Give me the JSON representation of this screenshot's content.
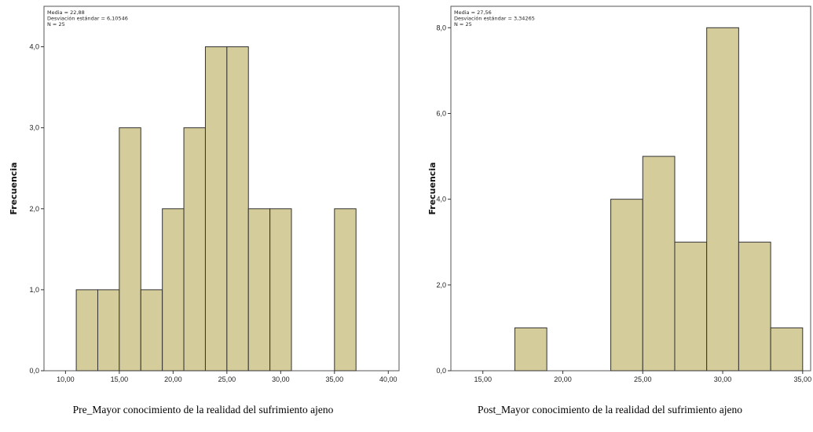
{
  "chart_data": [
    {
      "type": "bar",
      "id": "pre",
      "title": "",
      "xlabel": "Pre_Mayor conocimiento de la realidad del sufrimiento ajeno",
      "ylabel": "Frecuencia",
      "stats": [
        "Media = 22,88",
        "Desviación estándar = 6,10546",
        "N = 25"
      ],
      "xlim": [
        8,
        41
      ],
      "ylim": [
        0,
        4.5
      ],
      "x_ticks": [
        10,
        15,
        20,
        25,
        30,
        35,
        40
      ],
      "x_tick_labels": [
        "10,00",
        "15,00",
        "20,00",
        "25,00",
        "30,00",
        "35,00",
        "40,00"
      ],
      "y_ticks": [
        0,
        1,
        2,
        3,
        4
      ],
      "y_tick_labels": [
        "0,0",
        "1,0",
        "2,0",
        "3,0",
        "4,0"
      ],
      "bin_width": 2,
      "bins": [
        {
          "start": 11,
          "end": 13,
          "value": 1
        },
        {
          "start": 13,
          "end": 15,
          "value": 1
        },
        {
          "start": 15,
          "end": 17,
          "value": 3
        },
        {
          "start": 17,
          "end": 19,
          "value": 1
        },
        {
          "start": 19,
          "end": 21,
          "value": 2
        },
        {
          "start": 21,
          "end": 23,
          "value": 3
        },
        {
          "start": 23,
          "end": 25,
          "value": 4
        },
        {
          "start": 25,
          "end": 27,
          "value": 4
        },
        {
          "start": 27,
          "end": 29,
          "value": 2
        },
        {
          "start": 29,
          "end": 31,
          "value": 2
        },
        {
          "start": 35,
          "end": 37,
          "value": 2
        }
      ],
      "grid": false,
      "bar_color": "#d4cc9a",
      "bar_edge": "#333333"
    },
    {
      "type": "bar",
      "id": "post",
      "title": "",
      "xlabel": "Post_Mayor conocimiento de la realidad del sufrimiento ajeno",
      "ylabel": "Frecuencia",
      "stats": [
        "Media = 27,56",
        "Desviación estándar = 3,34265",
        "N = 25"
      ],
      "xlim": [
        13,
        35.5
      ],
      "ylim": [
        0,
        8.5
      ],
      "x_ticks": [
        15,
        20,
        25,
        30,
        35
      ],
      "x_tick_labels": [
        "15,00",
        "20,00",
        "25,00",
        "30,00",
        "35,00"
      ],
      "y_ticks": [
        0,
        2,
        4,
        6,
        8
      ],
      "y_tick_labels": [
        "0,0",
        "2,0",
        "4,0",
        "6,0",
        "8,0"
      ],
      "bin_width": 2,
      "bins": [
        {
          "start": 17,
          "end": 19,
          "value": 1
        },
        {
          "start": 23,
          "end": 25,
          "value": 4
        },
        {
          "start": 25,
          "end": 27,
          "value": 5
        },
        {
          "start": 27,
          "end": 29,
          "value": 3
        },
        {
          "start": 29,
          "end": 31,
          "value": 8
        },
        {
          "start": 31,
          "end": 33,
          "value": 3
        },
        {
          "start": 33,
          "end": 35,
          "value": 1
        }
      ],
      "grid": false,
      "bar_color": "#d4cc9a",
      "bar_edge": "#333333"
    }
  ]
}
